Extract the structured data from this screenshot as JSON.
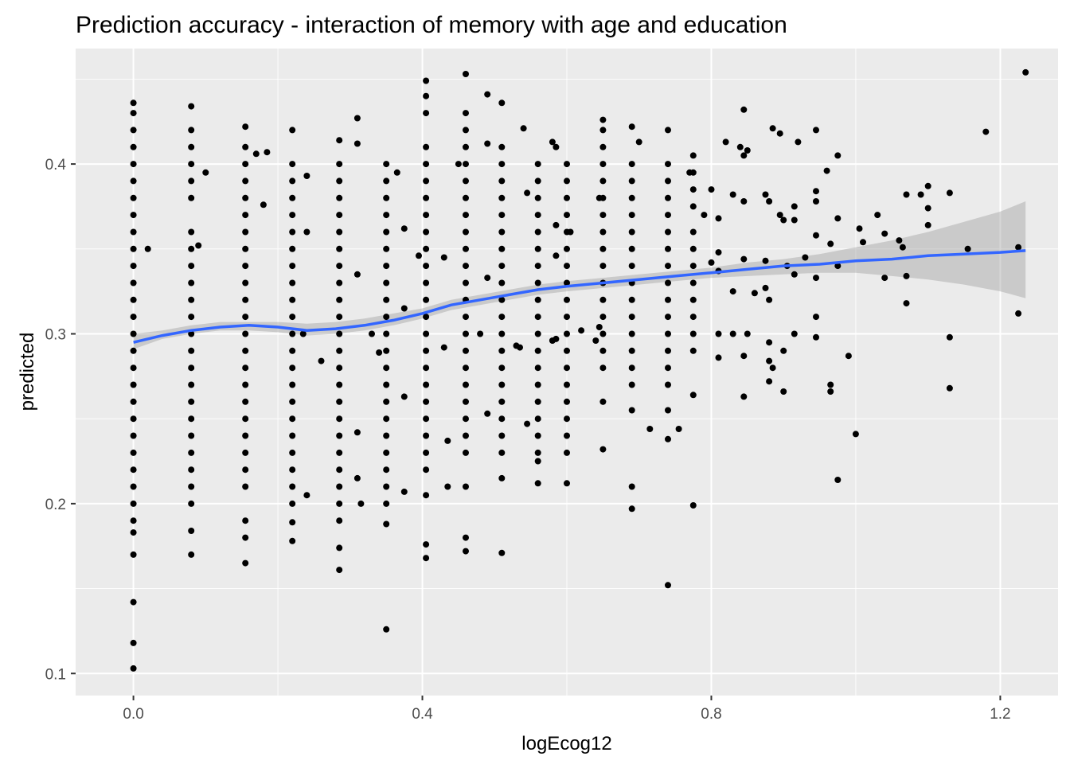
{
  "chart_data": {
    "type": "scatter",
    "title": "Prediction accuracy - interaction of memory with age and education",
    "xlabel": "logEcog12",
    "ylabel": "predicted",
    "xlim": [
      -0.08,
      1.28
    ],
    "ylim": [
      0.087,
      0.468
    ],
    "xticks": [
      0.0,
      0.4,
      0.8,
      1.2
    ],
    "xtick_labels": [
      "0.0",
      "0.4",
      "0.8",
      "1.2"
    ],
    "yticks": [
      0.1,
      0.2,
      0.3,
      0.4
    ],
    "ytick_labels": [
      "0.1",
      "0.2",
      "0.3",
      "0.4"
    ],
    "grid": true,
    "colors": {
      "panel": "#ebebeb",
      "grid_major": "#ffffff",
      "points": "#000000",
      "smooth_line": "#3366ff",
      "ribbon": "#999999"
    },
    "columns": [
      {
        "x": 0.0,
        "y": [
          0.436,
          0.43,
          0.42,
          0.41,
          0.4,
          0.39,
          0.38,
          0.37,
          0.36,
          0.35,
          0.34,
          0.33,
          0.32,
          0.31,
          0.3,
          0.29,
          0.28,
          0.27,
          0.26,
          0.25,
          0.24,
          0.23,
          0.22,
          0.21,
          0.2,
          0.19,
          0.183,
          0.17,
          0.142,
          0.118,
          0.103
        ]
      },
      {
        "x": 0.08,
        "y": [
          0.434,
          0.42,
          0.41,
          0.4,
          0.39,
          0.38,
          0.36,
          0.35,
          0.34,
          0.33,
          0.32,
          0.31,
          0.3,
          0.29,
          0.28,
          0.27,
          0.26,
          0.25,
          0.24,
          0.23,
          0.22,
          0.21,
          0.2,
          0.184,
          0.17
        ]
      },
      {
        "x": 0.155,
        "y": [
          0.422,
          0.41,
          0.4,
          0.39,
          0.38,
          0.37,
          0.36,
          0.35,
          0.34,
          0.33,
          0.32,
          0.31,
          0.3,
          0.29,
          0.28,
          0.27,
          0.26,
          0.25,
          0.24,
          0.23,
          0.22,
          0.21,
          0.19,
          0.18,
          0.165
        ]
      },
      {
        "x": 0.22,
        "y": [
          0.42,
          0.4,
          0.39,
          0.38,
          0.37,
          0.36,
          0.35,
          0.34,
          0.33,
          0.32,
          0.31,
          0.3,
          0.29,
          0.28,
          0.27,
          0.26,
          0.25,
          0.24,
          0.23,
          0.22,
          0.21,
          0.2,
          0.189,
          0.178
        ]
      },
      {
        "x": 0.285,
        "y": [
          0.414,
          0.4,
          0.39,
          0.38,
          0.37,
          0.36,
          0.35,
          0.34,
          0.33,
          0.32,
          0.31,
          0.3,
          0.29,
          0.28,
          0.27,
          0.26,
          0.25,
          0.24,
          0.23,
          0.22,
          0.21,
          0.2,
          0.19,
          0.174,
          0.161
        ]
      },
      {
        "x": 0.35,
        "y": [
          0.4,
          0.39,
          0.38,
          0.37,
          0.36,
          0.35,
          0.34,
          0.33,
          0.32,
          0.31,
          0.3,
          0.29,
          0.28,
          0.27,
          0.26,
          0.25,
          0.24,
          0.23,
          0.22,
          0.21,
          0.2,
          0.188,
          0.126
        ]
      },
      {
        "x": 0.405,
        "y": [
          0.449,
          0.44,
          0.43,
          0.41,
          0.4,
          0.39,
          0.38,
          0.37,
          0.36,
          0.35,
          0.34,
          0.33,
          0.32,
          0.31,
          0.3,
          0.29,
          0.28,
          0.27,
          0.26,
          0.25,
          0.24,
          0.23,
          0.22,
          0.205,
          0.176,
          0.168
        ]
      },
      {
        "x": 0.46,
        "y": [
          0.453,
          0.43,
          0.42,
          0.41,
          0.4,
          0.39,
          0.38,
          0.37,
          0.36,
          0.35,
          0.34,
          0.33,
          0.32,
          0.31,
          0.3,
          0.29,
          0.28,
          0.27,
          0.26,
          0.25,
          0.24,
          0.23,
          0.21,
          0.18,
          0.172
        ]
      },
      {
        "x": 0.51,
        "y": [
          0.436,
          0.41,
          0.4,
          0.39,
          0.38,
          0.37,
          0.36,
          0.35,
          0.34,
          0.33,
          0.32,
          0.31,
          0.3,
          0.29,
          0.28,
          0.27,
          0.26,
          0.25,
          0.24,
          0.23,
          0.215,
          0.171
        ]
      },
      {
        "x": 0.56,
        "y": [
          0.4,
          0.39,
          0.38,
          0.37,
          0.36,
          0.35,
          0.34,
          0.33,
          0.32,
          0.31,
          0.3,
          0.29,
          0.28,
          0.27,
          0.26,
          0.25,
          0.24,
          0.23,
          0.225,
          0.212
        ]
      },
      {
        "x": 0.6,
        "y": [
          0.4,
          0.39,
          0.38,
          0.37,
          0.36,
          0.35,
          0.34,
          0.33,
          0.32,
          0.31,
          0.3,
          0.29,
          0.28,
          0.27,
          0.26,
          0.25,
          0.24,
          0.23,
          0.212
        ]
      },
      {
        "x": 0.65,
        "y": [
          0.426,
          0.42,
          0.41,
          0.4,
          0.39,
          0.38,
          0.37,
          0.36,
          0.35,
          0.34,
          0.33,
          0.32,
          0.31,
          0.3,
          0.29,
          0.28,
          0.26,
          0.232
        ]
      },
      {
        "x": 0.69,
        "y": [
          0.422,
          0.4,
          0.39,
          0.38,
          0.37,
          0.36,
          0.35,
          0.34,
          0.33,
          0.32,
          0.31,
          0.3,
          0.29,
          0.28,
          0.27,
          0.255,
          0.21,
          0.197
        ]
      },
      {
        "x": 0.74,
        "y": [
          0.42,
          0.4,
          0.39,
          0.38,
          0.37,
          0.36,
          0.35,
          0.34,
          0.33,
          0.32,
          0.31,
          0.3,
          0.29,
          0.28,
          0.27,
          0.255,
          0.238,
          0.152
        ]
      },
      {
        "x": 0.775,
        "y": [
          0.405,
          0.395,
          0.385,
          0.375,
          0.36,
          0.35,
          0.34,
          0.33,
          0.32,
          0.31,
          0.3,
          0.29,
          0.264,
          0.199
        ]
      }
    ],
    "extra_points": [
      {
        "x": 0.02,
        "y": 0.35
      },
      {
        "x": 0.09,
        "y": 0.352
      },
      {
        "x": 0.1,
        "y": 0.395
      },
      {
        "x": 0.17,
        "y": 0.406
      },
      {
        "x": 0.185,
        "y": 0.407
      },
      {
        "x": 0.18,
        "y": 0.376
      },
      {
        "x": 0.24,
        "y": 0.393
      },
      {
        "x": 0.24,
        "y": 0.36
      },
      {
        "x": 0.235,
        "y": 0.3
      },
      {
        "x": 0.24,
        "y": 0.205
      },
      {
        "x": 0.26,
        "y": 0.284
      },
      {
        "x": 0.31,
        "y": 0.427
      },
      {
        "x": 0.31,
        "y": 0.412
      },
      {
        "x": 0.31,
        "y": 0.335
      },
      {
        "x": 0.31,
        "y": 0.242
      },
      {
        "x": 0.31,
        "y": 0.215
      },
      {
        "x": 0.315,
        "y": 0.2
      },
      {
        "x": 0.33,
        "y": 0.3
      },
      {
        "x": 0.34,
        "y": 0.289
      },
      {
        "x": 0.365,
        "y": 0.395
      },
      {
        "x": 0.375,
        "y": 0.362
      },
      {
        "x": 0.375,
        "y": 0.315
      },
      {
        "x": 0.375,
        "y": 0.263
      },
      {
        "x": 0.375,
        "y": 0.207
      },
      {
        "x": 0.395,
        "y": 0.346
      },
      {
        "x": 0.43,
        "y": 0.345
      },
      {
        "x": 0.43,
        "y": 0.292
      },
      {
        "x": 0.435,
        "y": 0.237
      },
      {
        "x": 0.435,
        "y": 0.21
      },
      {
        "x": 0.45,
        "y": 0.4
      },
      {
        "x": 0.48,
        "y": 0.3
      },
      {
        "x": 0.49,
        "y": 0.441
      },
      {
        "x": 0.49,
        "y": 0.412
      },
      {
        "x": 0.49,
        "y": 0.333
      },
      {
        "x": 0.49,
        "y": 0.253
      },
      {
        "x": 0.53,
        "y": 0.293
      },
      {
        "x": 0.535,
        "y": 0.292
      },
      {
        "x": 0.545,
        "y": 0.383
      },
      {
        "x": 0.54,
        "y": 0.421
      },
      {
        "x": 0.545,
        "y": 0.247
      },
      {
        "x": 0.58,
        "y": 0.296
      },
      {
        "x": 0.585,
        "y": 0.297
      },
      {
        "x": 0.585,
        "y": 0.346
      },
      {
        "x": 0.585,
        "y": 0.41
      },
      {
        "x": 0.58,
        "y": 0.413
      },
      {
        "x": 0.585,
        "y": 0.364
      },
      {
        "x": 0.605,
        "y": 0.36
      },
      {
        "x": 0.62,
        "y": 0.302
      },
      {
        "x": 0.645,
        "y": 0.38
      },
      {
        "x": 0.64,
        "y": 0.296
      },
      {
        "x": 0.645,
        "y": 0.304
      },
      {
        "x": 0.7,
        "y": 0.413
      },
      {
        "x": 0.715,
        "y": 0.244
      },
      {
        "x": 0.755,
        "y": 0.244
      },
      {
        "x": 0.77,
        "y": 0.395
      },
      {
        "x": 0.8,
        "y": 0.385
      },
      {
        "x": 0.79,
        "y": 0.37
      },
      {
        "x": 0.8,
        "y": 0.342
      },
      {
        "x": 0.82,
        "y": 0.413
      },
      {
        "x": 0.83,
        "y": 0.382
      },
      {
        "x": 0.81,
        "y": 0.368
      },
      {
        "x": 0.81,
        "y": 0.348
      },
      {
        "x": 0.81,
        "y": 0.337
      },
      {
        "x": 0.81,
        "y": 0.3
      },
      {
        "x": 0.81,
        "y": 0.286
      },
      {
        "x": 0.83,
        "y": 0.3
      },
      {
        "x": 0.83,
        "y": 0.325
      },
      {
        "x": 0.84,
        "y": 0.41
      },
      {
        "x": 0.845,
        "y": 0.432
      },
      {
        "x": 0.845,
        "y": 0.405
      },
      {
        "x": 0.85,
        "y": 0.408
      },
      {
        "x": 0.845,
        "y": 0.378
      },
      {
        "x": 0.845,
        "y": 0.344
      },
      {
        "x": 0.85,
        "y": 0.3
      },
      {
        "x": 0.845,
        "y": 0.287
      },
      {
        "x": 0.845,
        "y": 0.263
      },
      {
        "x": 0.86,
        "y": 0.324
      },
      {
        "x": 0.875,
        "y": 0.382
      },
      {
        "x": 0.875,
        "y": 0.343
      },
      {
        "x": 0.875,
        "y": 0.327
      },
      {
        "x": 0.885,
        "y": 0.421
      },
      {
        "x": 0.88,
        "y": 0.378
      },
      {
        "x": 0.88,
        "y": 0.32
      },
      {
        "x": 0.88,
        "y": 0.295
      },
      {
        "x": 0.88,
        "y": 0.284
      },
      {
        "x": 0.88,
        "y": 0.272
      },
      {
        "x": 0.885,
        "y": 0.28
      },
      {
        "x": 0.895,
        "y": 0.418
      },
      {
        "x": 0.895,
        "y": 0.37
      },
      {
        "x": 0.9,
        "y": 0.367
      },
      {
        "x": 0.905,
        "y": 0.34
      },
      {
        "x": 0.9,
        "y": 0.29
      },
      {
        "x": 0.9,
        "y": 0.266
      },
      {
        "x": 0.915,
        "y": 0.375
      },
      {
        "x": 0.915,
        "y": 0.367
      },
      {
        "x": 0.915,
        "y": 0.335
      },
      {
        "x": 0.915,
        "y": 0.3
      },
      {
        "x": 0.92,
        "y": 0.413
      },
      {
        "x": 0.93,
        "y": 0.345
      },
      {
        "x": 0.945,
        "y": 0.42
      },
      {
        "x": 0.945,
        "y": 0.384
      },
      {
        "x": 0.945,
        "y": 0.378
      },
      {
        "x": 0.945,
        "y": 0.358
      },
      {
        "x": 0.945,
        "y": 0.333
      },
      {
        "x": 0.945,
        "y": 0.31
      },
      {
        "x": 0.945,
        "y": 0.298
      },
      {
        "x": 0.96,
        "y": 0.396
      },
      {
        "x": 0.965,
        "y": 0.353
      },
      {
        "x": 0.965,
        "y": 0.27
      },
      {
        "x": 0.965,
        "y": 0.266
      },
      {
        "x": 0.975,
        "y": 0.405
      },
      {
        "x": 0.975,
        "y": 0.368
      },
      {
        "x": 0.975,
        "y": 0.34
      },
      {
        "x": 0.975,
        "y": 0.214
      },
      {
        "x": 0.99,
        "y": 0.287
      },
      {
        "x": 1.0,
        "y": 0.241
      },
      {
        "x": 1.005,
        "y": 0.362
      },
      {
        "x": 1.01,
        "y": 0.354
      },
      {
        "x": 1.03,
        "y": 0.37
      },
      {
        "x": 1.04,
        "y": 0.333
      },
      {
        "x": 1.04,
        "y": 0.359
      },
      {
        "x": 1.06,
        "y": 0.355
      },
      {
        "x": 1.065,
        "y": 0.351
      },
      {
        "x": 1.07,
        "y": 0.382
      },
      {
        "x": 1.07,
        "y": 0.334
      },
      {
        "x": 1.07,
        "y": 0.318
      },
      {
        "x": 1.09,
        "y": 0.382
      },
      {
        "x": 1.1,
        "y": 0.387
      },
      {
        "x": 1.1,
        "y": 0.374
      },
      {
        "x": 1.1,
        "y": 0.364
      },
      {
        "x": 1.13,
        "y": 0.383
      },
      {
        "x": 1.13,
        "y": 0.298
      },
      {
        "x": 1.13,
        "y": 0.268
      },
      {
        "x": 1.155,
        "y": 0.35
      },
      {
        "x": 1.18,
        "y": 0.419
      },
      {
        "x": 1.225,
        "y": 0.351
      },
      {
        "x": 1.225,
        "y": 0.312
      },
      {
        "x": 1.235,
        "y": 0.454
      }
    ],
    "smooth": {
      "x": [
        0.0,
        0.04,
        0.08,
        0.12,
        0.16,
        0.2,
        0.24,
        0.28,
        0.32,
        0.36,
        0.4,
        0.44,
        0.48,
        0.52,
        0.56,
        0.6,
        0.65,
        0.7,
        0.75,
        0.8,
        0.85,
        0.9,
        0.95,
        1.0,
        1.05,
        1.1,
        1.15,
        1.2,
        1.235
      ],
      "y": [
        0.295,
        0.299,
        0.302,
        0.304,
        0.305,
        0.304,
        0.302,
        0.303,
        0.305,
        0.308,
        0.312,
        0.317,
        0.32,
        0.323,
        0.326,
        0.328,
        0.33,
        0.332,
        0.334,
        0.336,
        0.338,
        0.34,
        0.341,
        0.343,
        0.344,
        0.346,
        0.347,
        0.348,
        0.349
      ],
      "ymin": [
        0.291,
        0.297,
        0.3,
        0.302,
        0.302,
        0.301,
        0.299,
        0.3,
        0.302,
        0.305,
        0.309,
        0.314,
        0.317,
        0.32,
        0.323,
        0.325,
        0.327,
        0.329,
        0.331,
        0.333,
        0.334,
        0.335,
        0.336,
        0.336,
        0.334,
        0.332,
        0.329,
        0.325,
        0.321
      ],
      "ymax": [
        0.3,
        0.302,
        0.305,
        0.307,
        0.307,
        0.307,
        0.306,
        0.307,
        0.309,
        0.312,
        0.315,
        0.32,
        0.323,
        0.326,
        0.329,
        0.331,
        0.333,
        0.335,
        0.337,
        0.339,
        0.342,
        0.344,
        0.347,
        0.351,
        0.355,
        0.36,
        0.366,
        0.372,
        0.378
      ]
    }
  }
}
